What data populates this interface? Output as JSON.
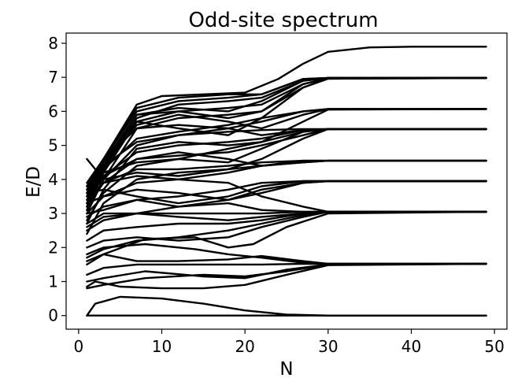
{
  "chart_data": {
    "type": "line",
    "title": "Odd-site spectrum",
    "xlabel": "N",
    "ylabel": "E/D",
    "xlim": [
      -1.5,
      51.5
    ],
    "ylim": [
      -0.4,
      8.3
    ],
    "xticks": [
      0,
      10,
      20,
      30,
      40,
      50
    ],
    "yticks": [
      0,
      1,
      2,
      3,
      4,
      5,
      6,
      7,
      8
    ],
    "grid": false,
    "line_color": "#000000",
    "series": [
      {
        "x": [
          1,
          3,
          5,
          10,
          20,
          25,
          30,
          35,
          40,
          49
        ],
        "y": [
          0,
          0,
          0,
          0,
          0,
          0,
          0,
          0,
          0,
          0
        ]
      },
      {
        "x": [
          1,
          2,
          5,
          10,
          15,
          20,
          25,
          30,
          49
        ],
        "y": [
          0,
          0.35,
          0.55,
          0.5,
          0.35,
          0.15,
          0.03,
          0,
          0
        ]
      },
      {
        "x": [
          1,
          3,
          7,
          12,
          17,
          22,
          27,
          32,
          49
        ],
        "y": [
          1.2,
          1.4,
          1.5,
          1.5,
          1.5,
          1.5,
          1.52,
          1.52,
          1.52
        ]
      },
      {
        "x": [
          1,
          3,
          8,
          15,
          20,
          25,
          30,
          49
        ],
        "y": [
          0.8,
          0.9,
          1.1,
          1.2,
          1.15,
          1.3,
          1.5,
          1.52
        ]
      },
      {
        "x": [
          1,
          3,
          8,
          15,
          20,
          25,
          30,
          49
        ],
        "y": [
          1.0,
          1.1,
          1.3,
          1.15,
          1.1,
          1.35,
          1.5,
          1.52
        ]
      },
      {
        "x": [
          1,
          3,
          8,
          14,
          18,
          22,
          27,
          30,
          49
        ],
        "y": [
          1.8,
          2.0,
          2.1,
          1.95,
          1.8,
          1.7,
          1.55,
          1.52,
          1.52
        ]
      },
      {
        "x": [
          1,
          3,
          7,
          12,
          18,
          22,
          27,
          30,
          49
        ],
        "y": [
          1.6,
          1.8,
          1.6,
          1.6,
          1.65,
          1.75,
          1.6,
          1.52,
          1.52
        ]
      },
      {
        "x": [
          1,
          2,
          5,
          10,
          15,
          20,
          25,
          30,
          49
        ],
        "y": [
          0.85,
          1.0,
          0.85,
          0.8,
          0.8,
          0.9,
          1.2,
          1.48,
          1.52
        ]
      },
      {
        "x": [
          1,
          3,
          7,
          12,
          18,
          22,
          27,
          30,
          49
        ],
        "y": [
          2.6,
          2.9,
          3.0,
          3.0,
          3.0,
          3.0,
          3.05,
          3.05,
          3.05
        ]
      },
      {
        "x": [
          1,
          3,
          7,
          12,
          18,
          22,
          27,
          30,
          49
        ],
        "y": [
          2.0,
          2.2,
          2.3,
          2.2,
          2.3,
          2.6,
          2.9,
          3.05,
          3.05
        ]
      },
      {
        "x": [
          1,
          3,
          8,
          14,
          18,
          21,
          25,
          30,
          49
        ],
        "y": [
          1.5,
          1.8,
          2.25,
          2.3,
          2.0,
          2.1,
          2.6,
          3.0,
          3.05
        ]
      },
      {
        "x": [
          1,
          3,
          7,
          12,
          18,
          22,
          27,
          30,
          49
        ],
        "y": [
          2.2,
          2.5,
          2.6,
          2.7,
          2.7,
          2.8,
          3.0,
          3.05,
          3.05
        ]
      },
      {
        "x": [
          1,
          3,
          7,
          12,
          18,
          22,
          27,
          30,
          49
        ],
        "y": [
          1.7,
          1.95,
          2.2,
          2.3,
          2.5,
          2.7,
          2.95,
          3.05,
          3.05
        ]
      },
      {
        "x": [
          1,
          3,
          7,
          12,
          18,
          22,
          27,
          30,
          49
        ],
        "y": [
          3.0,
          3.1,
          3.4,
          3.2,
          3.3,
          3.1,
          3.05,
          3.05,
          3.05
        ]
      },
      {
        "x": [
          1,
          3,
          7,
          12,
          18,
          22,
          27,
          30,
          49
        ],
        "y": [
          2.7,
          3.0,
          3.0,
          2.9,
          2.8,
          2.9,
          3.0,
          3.05,
          3.05
        ]
      },
      {
        "x": [
          1,
          3,
          7,
          12,
          18,
          22,
          27,
          30,
          49
        ],
        "y": [
          3.3,
          3.5,
          3.7,
          3.6,
          3.4,
          3.6,
          3.9,
          3.95,
          3.95
        ]
      },
      {
        "x": [
          1,
          3,
          7,
          12,
          18,
          22,
          27,
          30,
          49
        ],
        "y": [
          2.9,
          3.2,
          3.4,
          3.5,
          3.7,
          3.9,
          3.95,
          3.95,
          3.95
        ]
      },
      {
        "x": [
          1,
          3,
          7,
          12,
          18,
          22,
          27,
          30,
          49
        ],
        "y": [
          3.6,
          3.7,
          3.5,
          3.3,
          3.5,
          3.8,
          3.95,
          3.95,
          3.95
        ]
      },
      {
        "x": [
          1,
          3,
          7,
          12,
          18,
          22,
          27,
          30,
          49
        ],
        "y": [
          2.5,
          2.8,
          3.0,
          3.2,
          3.4,
          3.7,
          3.9,
          3.95,
          3.95
        ]
      },
      {
        "x": [
          1,
          3,
          7,
          12,
          18,
          22,
          27,
          30,
          49
        ],
        "y": [
          3.8,
          3.9,
          4.1,
          4.0,
          3.9,
          3.5,
          3.2,
          3.05,
          3.05
        ]
      },
      {
        "x": [
          1,
          3,
          7,
          12,
          18,
          22,
          27,
          30,
          49
        ],
        "y": [
          4.6,
          4.0,
          4.2,
          4.1,
          4.3,
          4.4,
          4.5,
          4.55,
          4.55
        ]
      },
      {
        "x": [
          1,
          3,
          7,
          12,
          18,
          22,
          27,
          30,
          49
        ],
        "y": [
          3.4,
          3.9,
          4.3,
          4.3,
          4.4,
          4.5,
          4.55,
          4.55,
          4.55
        ]
      },
      {
        "x": [
          1,
          3,
          7,
          12,
          18,
          22,
          27,
          30,
          49
        ],
        "y": [
          3.0,
          3.5,
          3.9,
          4.0,
          4.2,
          4.4,
          4.55,
          4.55,
          4.55
        ]
      },
      {
        "x": [
          1,
          3,
          7,
          12,
          18,
          22,
          27,
          30,
          49
        ],
        "y": [
          3.7,
          4.1,
          4.6,
          4.8,
          4.6,
          4.4,
          4.5,
          4.55,
          4.55
        ]
      },
      {
        "x": [
          1,
          3,
          7,
          12,
          18,
          22,
          27,
          30,
          49
        ],
        "y": [
          3.5,
          4.2,
          4.5,
          4.6,
          4.9,
          5.1,
          5.4,
          5.48,
          5.48
        ]
      },
      {
        "x": [
          1,
          3,
          7,
          12,
          18,
          22,
          27,
          30,
          49
        ],
        "y": [
          3.2,
          3.9,
          4.6,
          4.7,
          4.8,
          5.0,
          5.3,
          5.48,
          5.48
        ]
      },
      {
        "x": [
          1,
          3,
          7,
          12,
          18,
          22,
          27,
          30,
          49
        ],
        "y": [
          2.8,
          3.6,
          4.4,
          4.6,
          4.5,
          4.9,
          5.4,
          5.48,
          5.48
        ]
      },
      {
        "x": [
          1,
          3,
          7,
          12,
          18,
          22,
          27,
          30,
          49
        ],
        "y": [
          3.3,
          4.1,
          4.8,
          5.0,
          5.1,
          5.2,
          5.45,
          5.48,
          5.48
        ]
      },
      {
        "x": [
          1,
          3,
          7,
          12,
          18,
          22,
          27,
          30,
          49
        ],
        "y": [
          3.6,
          4.4,
          5.1,
          5.3,
          5.4,
          5.45,
          5.48,
          5.48,
          5.48
        ]
      },
      {
        "x": [
          1,
          3,
          7,
          12,
          18,
          22,
          27,
          30,
          49
        ],
        "y": [
          2.4,
          3.3,
          4.0,
          4.2,
          4.3,
          4.6,
          5.2,
          5.48,
          5.48
        ]
      },
      {
        "x": [
          1,
          3,
          7,
          12,
          18,
          22,
          27,
          30,
          49
        ],
        "y": [
          3.8,
          4.6,
          5.5,
          5.6,
          5.5,
          5.3,
          5.45,
          5.48,
          5.48
        ]
      },
      {
        "x": [
          1,
          3,
          7,
          12,
          18,
          22,
          27,
          30,
          49
        ],
        "y": [
          3.4,
          4.3,
          5.2,
          5.4,
          5.6,
          5.8,
          6.0,
          6.07,
          6.07
        ]
      },
      {
        "x": [
          1,
          3,
          7,
          12,
          18,
          22,
          27,
          30,
          49
        ],
        "y": [
          3.1,
          4.0,
          5.0,
          5.3,
          5.5,
          5.7,
          6.0,
          6.07,
          6.07
        ]
      },
      {
        "x": [
          1,
          3,
          7,
          12,
          18,
          22,
          27,
          30,
          49
        ],
        "y": [
          3.5,
          4.4,
          5.6,
          5.9,
          5.7,
          5.5,
          5.9,
          6.07,
          6.07
        ]
      },
      {
        "x": [
          1,
          3,
          7,
          12,
          18,
          22,
          27,
          30,
          49
        ],
        "y": [
          2.7,
          3.7,
          4.9,
          5.1,
          5.0,
          5.1,
          5.7,
          6.05,
          6.07
        ]
      },
      {
        "x": [
          1,
          3,
          7,
          12,
          18,
          22,
          27,
          30,
          49
        ],
        "y": [
          3.7,
          4.6,
          5.7,
          6.0,
          6.1,
          6.2,
          6.8,
          6.97,
          6.98
        ]
      },
      {
        "x": [
          1,
          3,
          7,
          12,
          18,
          22,
          27,
          30,
          49
        ],
        "y": [
          3.5,
          4.5,
          5.9,
          6.1,
          6.0,
          6.3,
          6.9,
          6.98,
          6.98
        ]
      },
      {
        "x": [
          1,
          3,
          7,
          12,
          18,
          22,
          27,
          30,
          49
        ],
        "y": [
          3.2,
          4.3,
          5.8,
          6.2,
          6.3,
          6.4,
          6.9,
          6.98,
          6.98
        ]
      },
      {
        "x": [
          1,
          3,
          7,
          12,
          18,
          22,
          27,
          30,
          49
        ],
        "y": [
          3.6,
          4.6,
          6.0,
          6.3,
          6.4,
          6.5,
          6.95,
          6.98,
          6.98
        ]
      },
      {
        "x": [
          1,
          3,
          7,
          12,
          18,
          22,
          27,
          30,
          49
        ],
        "y": [
          3.3,
          4.4,
          5.9,
          6.0,
          5.8,
          6.0,
          6.8,
          6.97,
          6.98
        ]
      },
      {
        "x": [
          1,
          3,
          7,
          12,
          18,
          22,
          27,
          30,
          49
        ],
        "y": [
          3.0,
          4.0,
          5.5,
          5.8,
          5.9,
          6.0,
          6.7,
          6.96,
          6.98
        ]
      },
      {
        "x": [
          1,
          3,
          7,
          12,
          18,
          22,
          27,
          30,
          49
        ],
        "y": [
          3.8,
          4.6,
          6.1,
          6.4,
          6.5,
          6.5,
          6.95,
          6.98,
          6.98
        ]
      },
      {
        "x": [
          1,
          3,
          7,
          12,
          18,
          22,
          27,
          30,
          49
        ],
        "y": [
          3.1,
          4.2,
          5.7,
          5.5,
          5.3,
          5.8,
          6.7,
          6.96,
          6.98
        ]
      },
      {
        "x": [
          1,
          3,
          7,
          10,
          15,
          20,
          24,
          27,
          30,
          35,
          40,
          49
        ],
        "y": [
          3.9,
          4.6,
          6.2,
          6.45,
          6.5,
          6.55,
          6.95,
          7.4,
          7.75,
          7.88,
          7.9,
          7.9
        ]
      }
    ]
  }
}
